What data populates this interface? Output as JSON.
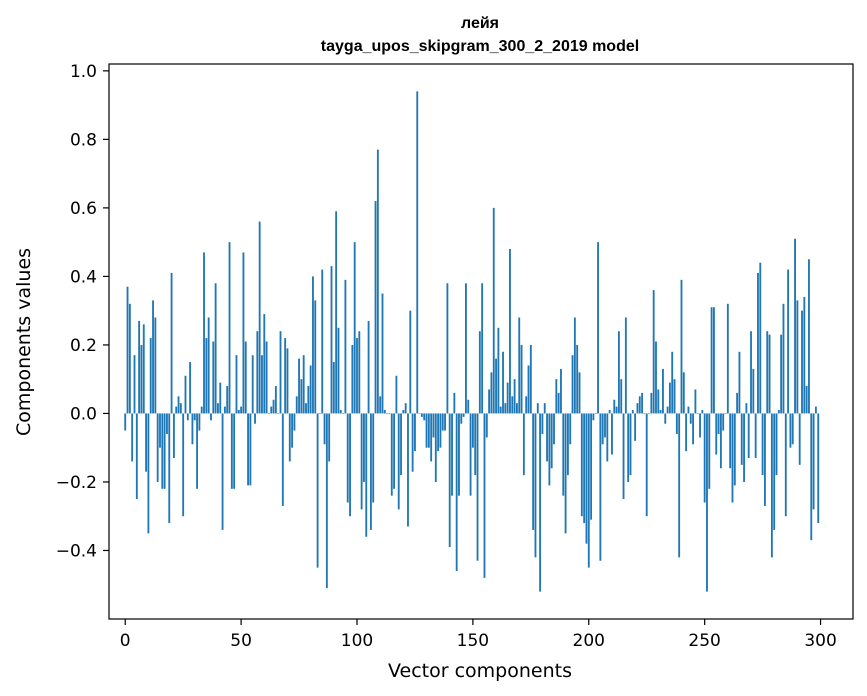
{
  "chart_data": {
    "type": "bar",
    "title": "лейя",
    "subtitle": "tayga_upos_skipgram_300_2_2019 model",
    "xlabel": "Vector components",
    "ylabel": "Components values",
    "xlim": [
      -7,
      314
    ],
    "ylim": [
      -0.6,
      1.02
    ],
    "xticks": [
      0,
      50,
      100,
      150,
      200,
      250,
      300
    ],
    "yticks": [
      -0.4,
      -0.2,
      0.0,
      0.2,
      0.4,
      0.6,
      0.8,
      1.0
    ],
    "xtick_labels": [
      "0",
      "50",
      "100",
      "150",
      "200",
      "250",
      "300"
    ],
    "ytick_labels": [
      "−0.4",
      "−0.2",
      "0.0",
      "0.2",
      "0.4",
      "0.6",
      "0.8",
      "1.0"
    ],
    "grid": false,
    "bar_color": "#1f77b4",
    "series": [
      {
        "values": [
          -0.05,
          0.37,
          0.32,
          -0.14,
          0.17,
          -0.25,
          0.27,
          0.2,
          0.26,
          -0.17,
          -0.35,
          0.22,
          0.33,
          0.28,
          -0.2,
          -0.1,
          -0.22,
          -0.22,
          -0.06,
          -0.32,
          0.41,
          -0.13,
          0.02,
          0.05,
          0.03,
          -0.3,
          0.11,
          -0.02,
          0.15,
          -0.09,
          -0.02,
          -0.22,
          -0.05,
          0.02,
          0.47,
          0.22,
          0.28,
          -0.02,
          0.21,
          0.38,
          0.03,
          0.09,
          -0.34,
          0.02,
          0.08,
          0.5,
          -0.22,
          -0.22,
          0.17,
          0.01,
          0.02,
          0.47,
          0.21,
          -0.21,
          -0.21,
          0.17,
          -0.03,
          0.24,
          0.56,
          0.17,
          0.29,
          0.21,
          0.0,
          0.02,
          0.04,
          0.08,
          0.0,
          0.24,
          -0.27,
          0.22,
          0.19,
          -0.14,
          -0.1,
          -0.05,
          0.05,
          0.16,
          0.1,
          0.17,
          0.03,
          0.08,
          0.14,
          0.4,
          0.33,
          -0.45,
          0.0,
          0.42,
          -0.09,
          -0.51,
          -0.14,
          0.43,
          0.15,
          0.59,
          0.25,
          0.01,
          0.0,
          0.39,
          -0.26,
          -0.3,
          0.2,
          0.5,
          0.22,
          0.24,
          -0.28,
          -0.2,
          -0.36,
          0.27,
          -0.34,
          -0.26,
          0.62,
          0.77,
          0.05,
          0.35,
          0.01,
          0.0,
          0.0,
          -0.24,
          -0.22,
          0.11,
          -0.28,
          -0.18,
          0.01,
          0.03,
          -0.33,
          0.3,
          -0.17,
          -0.11,
          0.94,
          0.0,
          -0.01,
          -0.02,
          -0.1,
          -0.1,
          -0.14,
          -0.07,
          -0.2,
          -0.11,
          -0.1,
          -0.05,
          -0.05,
          0.38,
          -0.39,
          -0.24,
          0.06,
          -0.46,
          -0.24,
          -0.03,
          -0.01,
          0.38,
          0.04,
          -0.24,
          -0.1,
          -0.18,
          -0.43,
          0.24,
          0.38,
          -0.48,
          -0.07,
          0.07,
          0.12,
          0.6,
          0.16,
          0.25,
          0.02,
          0.18,
          0.03,
          0.09,
          0.48,
          0.05,
          0.1,
          0.03,
          0.28,
          0.2,
          -0.18,
          0.05,
          0.14,
          0.2,
          -0.34,
          -0.42,
          0.03,
          -0.52,
          -0.06,
          0.03,
          -0.14,
          -0.21,
          -0.16,
          -0.09,
          0.1,
          0.06,
          0.13,
          -0.24,
          -0.35,
          -0.18,
          -0.09,
          0.17,
          0.28,
          0.2,
          0.12,
          -0.3,
          -0.32,
          -0.38,
          -0.45,
          -0.31,
          -0.02,
          0.0,
          0.5,
          -0.43,
          -0.09,
          -0.07,
          -0.14,
          0.01,
          -0.12,
          0.04,
          0.02,
          0.24,
          0.1,
          -0.25,
          0.28,
          -0.2,
          -0.18,
          0.01,
          -0.08,
          0.03,
          0.05,
          0.06,
          0.0,
          -0.3,
          0.0,
          0.06,
          0.36,
          0.21,
          0.07,
          0.01,
          0.13,
          -0.03,
          0.02,
          0.09,
          0.18,
          0.1,
          -0.06,
          -0.42,
          0.39,
          0.12,
          -0.11,
          0.02,
          -0.03,
          -0.09,
          0.07,
          0.0,
          -0.07,
          0.01,
          -0.26,
          -0.52,
          -0.22,
          0.31,
          0.31,
          -0.12,
          -0.06,
          -0.16,
          -0.05,
          0.0,
          0.32,
          -0.16,
          -0.26,
          -0.21,
          0.06,
          0.18,
          -0.15,
          -0.2,
          0.03,
          -0.13,
          0.24,
          0.13,
          -0.13,
          0.41,
          0.44,
          -0.18,
          -0.27,
          0.24,
          0.23,
          -0.42,
          -0.34,
          -0.18,
          0.01,
          0.23,
          0.32,
          -0.3,
          0.42,
          -0.1,
          -0.09,
          0.51,
          0.33,
          -0.15,
          0.3,
          0.34,
          0.08,
          0.45,
          -0.37,
          -0.28,
          0.02,
          -0.32
        ]
      }
    ]
  }
}
